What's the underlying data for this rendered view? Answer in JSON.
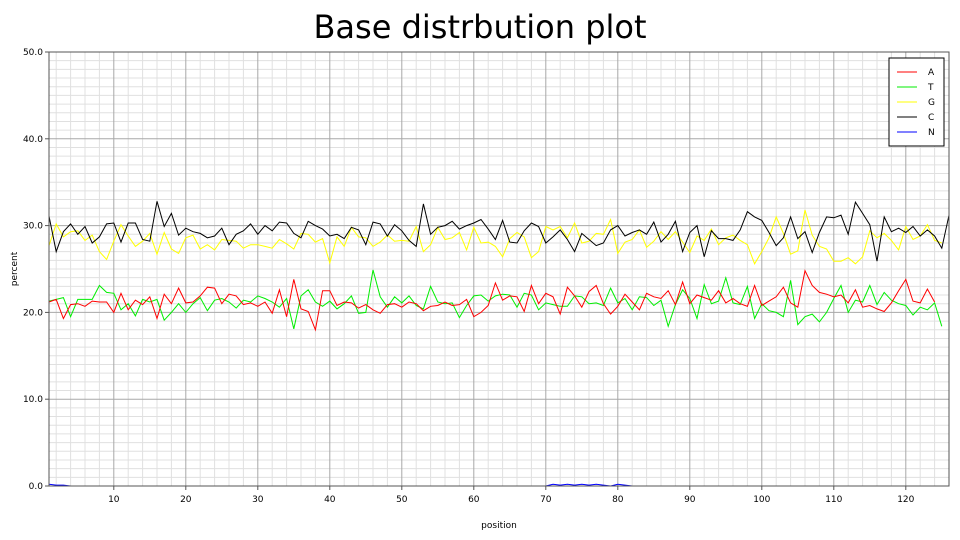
{
  "chart_data": {
    "type": "line",
    "title": "Base distrbution plot",
    "xlabel": "position",
    "ylabel": "percent",
    "xlim": [
      1,
      126
    ],
    "ylim": [
      0,
      50
    ],
    "xticks": [
      "10",
      "20",
      "30",
      "40",
      "50",
      "60",
      "70",
      "80",
      "90",
      "100",
      "110",
      "120"
    ],
    "yticks": [
      "0.0",
      "10.0",
      "20.0",
      "30.0",
      "40.0",
      "50.0"
    ],
    "grid": true,
    "legend_position": "top-right",
    "colors": {
      "A": "#ff0000",
      "T": "#00ee00",
      "G": "#ffff00",
      "C": "#000000",
      "N": "#0000ff"
    },
    "series": [
      {
        "name": "A",
        "values": [
          21.2,
          21.5,
          19.3,
          20.9,
          21.0,
          20.7,
          21.3,
          21.2,
          21.2,
          20.0,
          22.2,
          20.3,
          21.4,
          20.9,
          21.8,
          19.3,
          22.1,
          21.0,
          22.8,
          21.1,
          21.2,
          21.9,
          22.9,
          22.8,
          21.0,
          22.1,
          21.9,
          20.9,
          21.1,
          20.7,
          21.2,
          19.9,
          22.6,
          19.5,
          23.8,
          20.4,
          20.1,
          18.0,
          22.5,
          22.5,
          20.8,
          21.2,
          21.1,
          20.5,
          20.9,
          20.3,
          19.9,
          20.9,
          21.0,
          20.6,
          21.2,
          21.0,
          20.2,
          20.7,
          20.8,
          21.2,
          20.8,
          20.9,
          21.5,
          19.5,
          20.0,
          20.8,
          23.4,
          21.4,
          21.9,
          21.8,
          20.1,
          23.1,
          21.0,
          22.2,
          21.8,
          19.8,
          22.9,
          21.9,
          20.6,
          22.4,
          23.1,
          21.0,
          19.8,
          20.7,
          22.1,
          21.2,
          20.3,
          22.2,
          21.8,
          21.6,
          22.5,
          20.9,
          23.5,
          21.0,
          22.0,
          21.7,
          21.4,
          22.5,
          21.1,
          21.6,
          21.0,
          20.7,
          23.1,
          20.8,
          21.3,
          21.8,
          22.9,
          21.1,
          20.6,
          24.8,
          23.1,
          22.3,
          22.1,
          21.8,
          22.0,
          21.1,
          22.6,
          20.6,
          20.8,
          20.4,
          20.1,
          21.1,
          22.5,
          23.8,
          21.3,
          21.1,
          22.7,
          21.2
        ]
      },
      {
        "name": "T",
        "values": [
          21.3,
          21.5,
          21.7,
          19.5,
          21.5,
          21.5,
          21.5,
          23.1,
          22.3,
          22.2,
          20.3,
          21.0,
          19.6,
          21.5,
          21.2,
          21.5,
          19.1,
          20.0,
          21.0,
          20.0,
          21.0,
          21.7,
          20.2,
          21.4,
          21.6,
          21.2,
          20.5,
          21.4,
          21.2,
          21.9,
          21.6,
          21.2,
          20.6,
          21.6,
          18.1,
          21.9,
          22.6,
          21.2,
          20.7,
          21.3,
          20.4,
          21.0,
          21.9,
          19.9,
          20.0,
          24.9,
          21.8,
          20.6,
          21.8,
          21.1,
          21.9,
          20.8,
          20.4,
          23.0,
          21.2,
          21.0,
          21.1,
          19.4,
          20.8,
          21.9,
          22.0,
          21.3,
          21.9,
          22.1,
          22.0,
          20.6,
          22.2,
          22.0,
          20.3,
          21.1,
          20.9,
          20.7,
          20.7,
          21.9,
          21.8,
          21.0,
          21.1,
          20.8,
          22.8,
          21.1,
          21.6,
          20.3,
          21.8,
          21.7,
          20.8,
          21.4,
          18.4,
          20.9,
          22.6,
          21.6,
          19.3,
          23.2,
          21.0,
          21.3,
          24.0,
          21.1,
          20.9,
          23.0,
          19.3,
          21.0,
          20.2,
          20.0,
          19.5,
          23.7,
          18.6,
          19.5,
          19.8,
          18.9,
          20.0,
          21.6,
          23.1,
          20.0,
          21.4,
          21.2,
          23.1,
          20.9,
          22.3,
          21.4,
          21.0,
          20.8,
          19.7,
          20.6,
          20.3,
          21.1,
          18.4
        ]
      },
      {
        "name": "G",
        "values": [
          27.7,
          30.2,
          28.7,
          29.3,
          29.4,
          28.3,
          28.9,
          27.0,
          26.1,
          28.2,
          30.1,
          28.8,
          27.6,
          28.2,
          29.1,
          26.7,
          29.2,
          27.3,
          26.8,
          28.6,
          28.9,
          27.3,
          27.8,
          27.2,
          28.4,
          28.3,
          28.2,
          27.4,
          27.8,
          27.8,
          27.6,
          27.4,
          28.4,
          27.9,
          27.3,
          29.1,
          29.0,
          28.1,
          28.5,
          25.7,
          28.7,
          27.6,
          29.8,
          28.7,
          28.6,
          27.6,
          28.1,
          28.9,
          28.2,
          28.3,
          28.2,
          29.9,
          27.0,
          27.8,
          29.8,
          28.4,
          28.6,
          29.2,
          27.2,
          29.8,
          28.0,
          28.1,
          27.6,
          26.4,
          28.5,
          29.2,
          28.7,
          26.3,
          27.0,
          29.9,
          29.5,
          29.9,
          28.6,
          30.3,
          28.0,
          28.2,
          29.1,
          29.0,
          30.7,
          26.8,
          28.1,
          28.4,
          29.5,
          27.5,
          28.2,
          29.3,
          28.4,
          29.3,
          28.1,
          26.9,
          28.8,
          28.3,
          29.6,
          27.8,
          28.6,
          28.9,
          28.3,
          27.8,
          25.6,
          27.0,
          28.6,
          31.0,
          29.1,
          26.7,
          27.1,
          31.8,
          28.9,
          27.6,
          27.3,
          25.9,
          25.9,
          26.3,
          25.6,
          26.4,
          29.4,
          28.6,
          29.1,
          28.3,
          27.2,
          29.9,
          28.4,
          28.8,
          30.1,
          28.3,
          28.0
        ]
      },
      {
        "name": "C",
        "values": [
          31.1,
          27.0,
          29.3,
          30.2,
          29.0,
          29.9,
          28.0,
          28.7,
          30.2,
          30.3,
          28.1,
          30.3,
          30.3,
          28.4,
          28.2,
          32.8,
          29.9,
          31.4,
          28.9,
          29.7,
          29.3,
          29.1,
          28.6,
          28.8,
          29.7,
          27.8,
          29.0,
          29.4,
          30.2,
          29.0,
          30.0,
          29.4,
          30.4,
          30.3,
          29.1,
          28.6,
          30.5,
          30.0,
          29.6,
          28.8,
          29.0,
          28.5,
          29.8,
          29.5,
          27.8,
          30.4,
          30.2,
          28.8,
          30.1,
          29.4,
          28.3,
          27.6,
          32.5,
          29.0,
          29.8,
          30.0,
          30.5,
          29.6,
          30.0,
          30.3,
          30.7,
          29.6,
          28.4,
          30.6,
          28.1,
          28.0,
          29.4,
          30.3,
          29.9,
          28.0,
          28.7,
          29.5,
          28.4,
          27.0,
          29.1,
          28.4,
          27.7,
          28.0,
          29.5,
          30.0,
          28.8,
          29.2,
          29.5,
          29.0,
          30.4,
          28.1,
          29.0,
          30.5,
          27.0,
          29.2,
          30.0,
          26.4,
          29.4,
          28.5,
          28.5,
          28.3,
          29.5,
          31.6,
          31.0,
          30.6,
          29.2,
          27.7,
          28.6,
          31.0,
          28.5,
          29.3,
          26.9,
          29.2,
          31.0,
          30.9,
          31.2,
          29.0,
          32.7,
          31.4,
          30.1,
          25.9,
          31.0,
          29.3,
          29.7,
          29.2,
          29.9,
          28.8,
          29.5,
          28.8,
          27.4,
          31.2
        ]
      },
      {
        "name": "N",
        "values": [
          0.2,
          0.1,
          0.1,
          0.0,
          0.0,
          0.0,
          0.0,
          0.0,
          0.0,
          0.0,
          0.0,
          0.0,
          0.0,
          0.0,
          0.0,
          0.0,
          0.0,
          0.0,
          0.0,
          0.0,
          0.0,
          0.0,
          0.0,
          0.0,
          0.0,
          0.0,
          0.0,
          0.0,
          0.0,
          0.0,
          0.0,
          0.0,
          0.0,
          0.0,
          0.0,
          0.0,
          0.0,
          0.0,
          0.0,
          0.0,
          0.0,
          0.0,
          0.0,
          0.0,
          0.0,
          0.0,
          0.0,
          0.0,
          0.0,
          0.0,
          0.0,
          0.0,
          0.0,
          0.0,
          0.0,
          0.0,
          0.0,
          0.0,
          0.0,
          0.0,
          0.0,
          0.0,
          0.0,
          0.0,
          0.0,
          0.0,
          0.0,
          0.0,
          0.0,
          0.0,
          0.2,
          0.1,
          0.2,
          0.1,
          0.2,
          0.1,
          0.2,
          0.1,
          0.0,
          0.2,
          0.1,
          0.0,
          0.0,
          0.0,
          0.0,
          0.0,
          0.0,
          0.0,
          0.0,
          0.0,
          0.0,
          0.0,
          0.0,
          0.0,
          0.0,
          0.0,
          0.0,
          0.0,
          0.0,
          0.0,
          0.0,
          0.0,
          0.0,
          0.0,
          0.0,
          0.0,
          0.0,
          0.0,
          0.0,
          0.0,
          0.0,
          0.0,
          0.0,
          0.0,
          0.0,
          0.0,
          0.0,
          0.0,
          0.0,
          0.0,
          0.0,
          0.0,
          0.0,
          0.0,
          0.0,
          0.0
        ]
      }
    ]
  }
}
